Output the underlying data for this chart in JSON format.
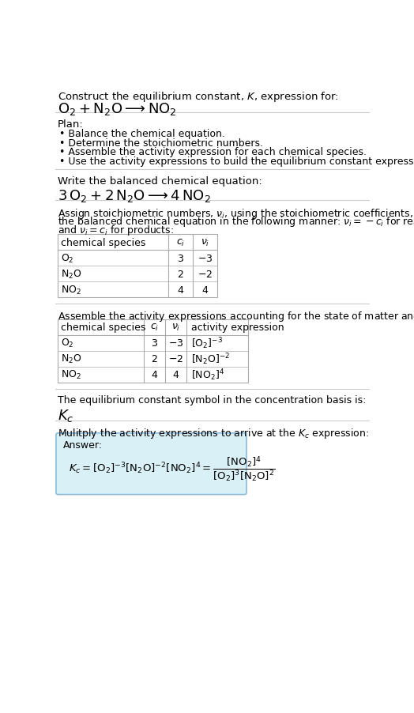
{
  "title_line1": "Construct the equilibrium constant, $K$, expression for:",
  "title_line2": "$\\mathrm{O_2 + N_2O} \\longrightarrow \\mathrm{NO_2}$",
  "plan_header": "Plan:",
  "plan_bullets": [
    "• Balance the chemical equation.",
    "• Determine the stoichiometric numbers.",
    "• Assemble the activity expression for each chemical species.",
    "• Use the activity expressions to build the equilibrium constant expression."
  ],
  "balanced_header": "Write the balanced chemical equation:",
  "balanced_eq": "$3\\,\\mathrm{O_2} + 2\\,\\mathrm{N_2O} \\longrightarrow 4\\,\\mathrm{NO_2}$",
  "stoich_intro": "Assign stoichiometric numbers, $\\nu_i$, using the stoichiometric coefficients, $c_i$, from the balanced chemical equation in the following manner: $\\nu_i = -c_i$ for reactants and $\\nu_i = c_i$ for products:",
  "table1_headers": [
    "chemical species",
    "$c_i$",
    "$\\nu_i$"
  ],
  "table1_rows": [
    [
      "$\\mathrm{O_2}$",
      "3",
      "$-3$"
    ],
    [
      "$\\mathrm{N_2O}$",
      "2",
      "$-2$"
    ],
    [
      "$\\mathrm{NO_2}$",
      "4",
      "4"
    ]
  ],
  "activity_header": "Assemble the activity expressions accounting for the state of matter and $\\nu_i$:",
  "table2_headers": [
    "chemical species",
    "$c_i$",
    "$\\nu_i$",
    "activity expression"
  ],
  "table2_rows": [
    [
      "$\\mathrm{O_2}$",
      "3",
      "$-3$",
      "$[\\mathrm{O_2}]^{-3}$"
    ],
    [
      "$\\mathrm{N_2O}$",
      "2",
      "$-2$",
      "$[\\mathrm{N_2O}]^{-2}$"
    ],
    [
      "$\\mathrm{NO_2}$",
      "4",
      "4",
      "$[\\mathrm{NO_2}]^{4}$"
    ]
  ],
  "kc_header": "The equilibrium constant symbol in the concentration basis is:",
  "kc_symbol": "$K_c$",
  "multiply_header": "Mulitply the activity expressions to arrive at the $K_c$ expression:",
  "answer_label": "Answer:",
  "bg_color": "#ffffff",
  "answer_bg_color": "#daf0f7",
  "answer_border_color": "#88bbdd",
  "text_color": "#000000",
  "table_line_color": "#aaaaaa",
  "section_line_color": "#cccccc",
  "font_size": 9.5,
  "small_font_size": 9.0,
  "title_font_size": 13.0,
  "eq_font_size": 13.0
}
